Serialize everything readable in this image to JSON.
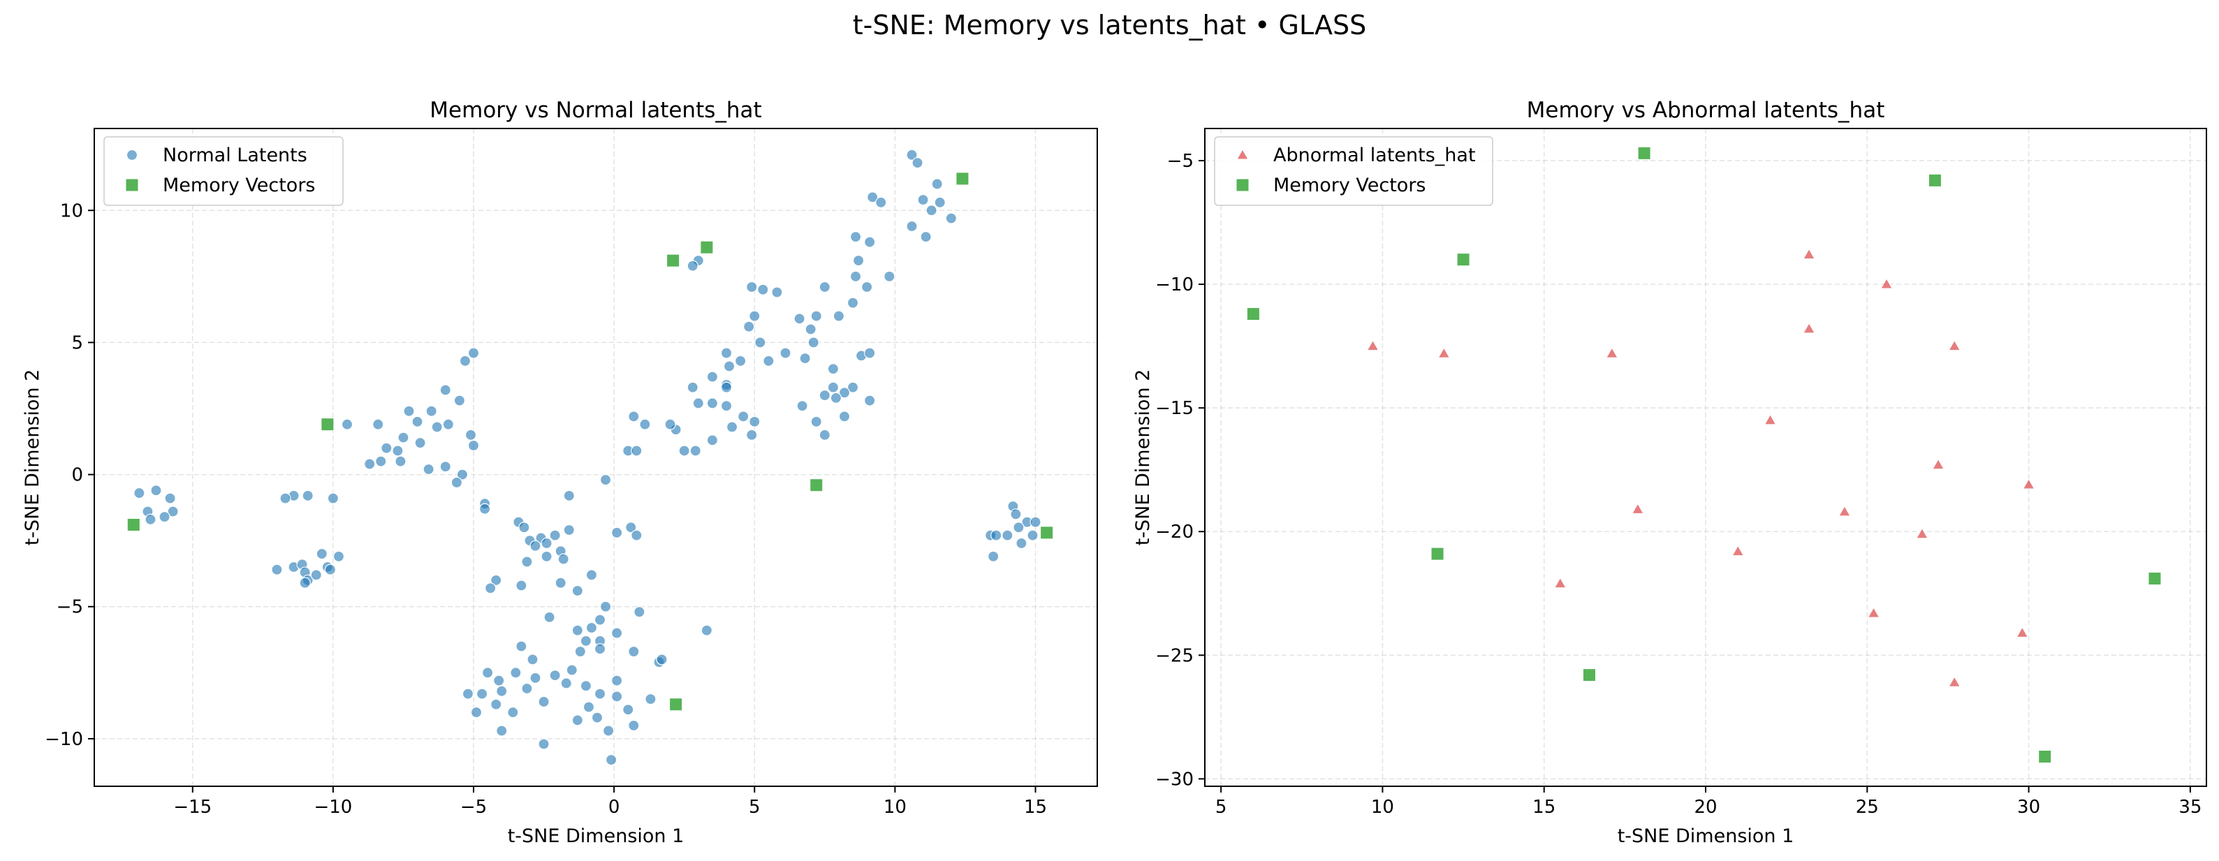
{
  "suptitle": "t-SNE: Memory vs latents_hat • GLASS",
  "colors": {
    "normal": "#1f77b4",
    "abnormal": "#d62728",
    "memory": "#2ca02c"
  },
  "chart_data": [
    {
      "type": "scatter",
      "title": "Memory vs Normal latents_hat",
      "xlabel": "t-SNE Dimension 1",
      "ylabel": "t-SNE Dimension 2",
      "xlim": [
        -18.5,
        17.2
      ],
      "ylim": [
        -11.8,
        13.1
      ],
      "xticks": [
        -15,
        -10,
        -5,
        0,
        5,
        10,
        15
      ],
      "yticks": [
        -10,
        -5,
        0,
        5,
        10
      ],
      "grid": true,
      "legend": "upper-left",
      "series": [
        {
          "name": "Normal Latents",
          "marker": "circle",
          "points": [
            [
              10.6,
              12.1
            ],
            [
              10.8,
              11.8
            ],
            [
              11.5,
              11.0
            ],
            [
              11.0,
              10.4
            ],
            [
              10.6,
              9.4
            ],
            [
              11.3,
              10.0
            ],
            [
              11.6,
              10.3
            ],
            [
              11.1,
              9.0
            ],
            [
              12.0,
              9.7
            ],
            [
              9.2,
              10.5
            ],
            [
              9.5,
              10.3
            ],
            [
              8.6,
              9.0
            ],
            [
              8.7,
              8.1
            ],
            [
              9.1,
              8.8
            ],
            [
              9.8,
              7.5
            ],
            [
              8.6,
              7.5
            ],
            [
              8.5,
              6.5
            ],
            [
              8.0,
              6.0
            ],
            [
              9.0,
              7.1
            ],
            [
              8.8,
              4.5
            ],
            [
              9.1,
              4.6
            ],
            [
              7.5,
              7.1
            ],
            [
              7.2,
              6.0
            ],
            [
              6.6,
              5.9
            ],
            [
              7.1,
              5.0
            ],
            [
              7.0,
              5.5
            ],
            [
              6.8,
              4.4
            ],
            [
              7.8,
              4.0
            ],
            [
              7.5,
              3.0
            ],
            [
              8.2,
              2.2
            ],
            [
              8.5,
              3.3
            ],
            [
              9.1,
              2.8
            ],
            [
              8.2,
              3.1
            ],
            [
              7.8,
              3.3
            ],
            [
              7.9,
              2.9
            ],
            [
              7.2,
              2.0
            ],
            [
              7.5,
              1.5
            ],
            [
              5.3,
              7.0
            ],
            [
              5.8,
              6.9
            ],
            [
              4.9,
              7.1
            ],
            [
              5.0,
              6.0
            ],
            [
              4.8,
              5.6
            ],
            [
              5.2,
              5.0
            ],
            [
              4.0,
              4.6
            ],
            [
              4.5,
              4.3
            ],
            [
              4.1,
              4.1
            ],
            [
              3.5,
              3.7
            ],
            [
              5.5,
              4.3
            ],
            [
              6.1,
              4.6
            ],
            [
              4.0,
              3.4
            ],
            [
              4.0,
              3.3
            ],
            [
              3.5,
              2.7
            ],
            [
              3.0,
              2.7
            ],
            [
              2.8,
              3.3
            ],
            [
              4.0,
              2.6
            ],
            [
              4.6,
              2.2
            ],
            [
              5.0,
              2.0
            ],
            [
              4.9,
              1.5
            ],
            [
              4.2,
              1.8
            ],
            [
              3.5,
              1.3
            ],
            [
              2.2,
              1.7
            ],
            [
              2.0,
              1.9
            ],
            [
              1.1,
              1.9
            ],
            [
              0.7,
              2.2
            ],
            [
              0.5,
              0.9
            ],
            [
              0.8,
              0.9
            ],
            [
              2.9,
              0.9
            ],
            [
              2.5,
              0.9
            ],
            [
              3.0,
              8.1
            ],
            [
              2.8,
              7.9
            ],
            [
              6.7,
              2.6
            ],
            [
              -5.0,
              4.6
            ],
            [
              -5.3,
              4.3
            ],
            [
              -6.0,
              3.2
            ],
            [
              -5.5,
              2.8
            ],
            [
              -6.5,
              2.4
            ],
            [
              -7.3,
              2.4
            ],
            [
              -7.0,
              2.0
            ],
            [
              -6.3,
              1.8
            ],
            [
              -5.9,
              1.9
            ],
            [
              -5.1,
              1.5
            ],
            [
              -7.5,
              1.4
            ],
            [
              -8.4,
              1.9
            ],
            [
              -9.5,
              1.9
            ],
            [
              -8.1,
              1.0
            ],
            [
              -7.7,
              0.9
            ],
            [
              -8.3,
              0.5
            ],
            [
              -8.7,
              0.4
            ],
            [
              -7.6,
              0.5
            ],
            [
              -6.9,
              1.2
            ],
            [
              -6.6,
              0.2
            ],
            [
              -6.0,
              0.3
            ],
            [
              -5.0,
              1.1
            ],
            [
              -5.4,
              0.0
            ],
            [
              -5.6,
              -0.3
            ],
            [
              -16.9,
              -0.7
            ],
            [
              -16.3,
              -0.6
            ],
            [
              -15.8,
              -0.9
            ],
            [
              -16.6,
              -1.4
            ],
            [
              -15.7,
              -1.4
            ],
            [
              -16.0,
              -1.6
            ],
            [
              -16.5,
              -1.7
            ],
            [
              -11.4,
              -0.8
            ],
            [
              -11.7,
              -0.9
            ],
            [
              -10.9,
              -0.8
            ],
            [
              -10.0,
              -0.9
            ],
            [
              -12.0,
              -3.6
            ],
            [
              -11.4,
              -3.5
            ],
            [
              -11.1,
              -3.4
            ],
            [
              -11.0,
              -3.7
            ],
            [
              -10.9,
              -4.0
            ],
            [
              -10.6,
              -3.8
            ],
            [
              -10.2,
              -3.5
            ],
            [
              -10.4,
              -3.0
            ],
            [
              -9.8,
              -3.1
            ],
            [
              -11.0,
              -4.1
            ],
            [
              -10.1,
              -3.6
            ],
            [
              -4.6,
              -1.1
            ],
            [
              -4.6,
              -1.3
            ],
            [
              -3.4,
              -1.8
            ],
            [
              -3.2,
              -2.0
            ],
            [
              -3.0,
              -2.5
            ],
            [
              -2.6,
              -2.4
            ],
            [
              -2.4,
              -2.6
            ],
            [
              -2.1,
              -2.3
            ],
            [
              -1.6,
              -2.1
            ],
            [
              -1.6,
              -0.8
            ],
            [
              -0.3,
              -0.2
            ],
            [
              0.1,
              -2.2
            ],
            [
              0.6,
              -2.0
            ],
            [
              0.8,
              -2.3
            ],
            [
              -1.9,
              -2.9
            ],
            [
              -2.8,
              -2.7
            ],
            [
              -2.4,
              -3.1
            ],
            [
              -1.8,
              -3.2
            ],
            [
              -3.1,
              -3.3
            ],
            [
              -3.3,
              -4.2
            ],
            [
              -4.2,
              -4.0
            ],
            [
              -4.4,
              -4.3
            ],
            [
              -2.3,
              -5.4
            ],
            [
              -1.9,
              -4.1
            ],
            [
              -1.3,
              -4.4
            ],
            [
              -0.8,
              -3.8
            ],
            [
              -0.3,
              -5.0
            ],
            [
              0.9,
              -5.2
            ],
            [
              -1.3,
              -5.9
            ],
            [
              -1.0,
              -6.3
            ],
            [
              -0.8,
              -5.8
            ],
            [
              -0.5,
              -5.5
            ],
            [
              -0.5,
              -6.3
            ],
            [
              0.1,
              -6.0
            ],
            [
              3.3,
              -5.9
            ],
            [
              1.6,
              -7.1
            ],
            [
              1.7,
              -7.0
            ],
            [
              0.7,
              -6.7
            ],
            [
              0.1,
              -7.8
            ],
            [
              -0.5,
              -6.6
            ],
            [
              -1.2,
              -6.7
            ],
            [
              -1.5,
              -7.4
            ],
            [
              -2.1,
              -7.6
            ],
            [
              -2.9,
              -7.0
            ],
            [
              -3.3,
              -6.5
            ],
            [
              -3.5,
              -7.5
            ],
            [
              -4.1,
              -7.8
            ],
            [
              -4.5,
              -7.5
            ],
            [
              -5.2,
              -8.3
            ],
            [
              -4.7,
              -8.3
            ],
            [
              -4.2,
              -8.7
            ],
            [
              -4.0,
              -8.2
            ],
            [
              -3.6,
              -9.0
            ],
            [
              -3.1,
              -8.1
            ],
            [
              -2.8,
              -7.7
            ],
            [
              -2.5,
              -8.6
            ],
            [
              -1.7,
              -7.9
            ],
            [
              -1.0,
              -8.0
            ],
            [
              -0.9,
              -8.8
            ],
            [
              -0.5,
              -8.3
            ],
            [
              0.1,
              -8.4
            ],
            [
              0.5,
              -8.9
            ],
            [
              0.7,
              -9.5
            ],
            [
              -0.2,
              -9.7
            ],
            [
              -0.6,
              -9.2
            ],
            [
              -1.3,
              -9.3
            ],
            [
              -2.5,
              -10.2
            ],
            [
              -4.0,
              -9.7
            ],
            [
              -4.9,
              -9.0
            ],
            [
              -0.1,
              -10.8
            ],
            [
              1.3,
              -8.5
            ],
            [
              14.2,
              -1.2
            ],
            [
              14.3,
              -1.5
            ],
            [
              14.7,
              -1.8
            ],
            [
              15.0,
              -1.8
            ],
            [
              14.9,
              -2.3
            ],
            [
              14.5,
              -2.6
            ],
            [
              14.0,
              -2.3
            ],
            [
              13.4,
              -2.3
            ],
            [
              13.6,
              -2.3
            ],
            [
              13.5,
              -3.1
            ],
            [
              14.4,
              -2.0
            ]
          ]
        },
        {
          "name": "Memory Vectors",
          "marker": "square",
          "points": [
            [
              12.4,
              11.2
            ],
            [
              3.3,
              8.6
            ],
            [
              2.1,
              8.1
            ],
            [
              -10.2,
              1.9
            ],
            [
              7.2,
              -0.4
            ],
            [
              -17.1,
              -1.9
            ],
            [
              15.4,
              -2.2
            ],
            [
              2.2,
              -8.7
            ]
          ]
        }
      ]
    },
    {
      "type": "scatter",
      "title": "Memory vs Abnormal latents_hat",
      "xlabel": "t-SNE Dimension 1",
      "ylabel": "t-SNE Dimension 2",
      "xlim": [
        4.5,
        35.5
      ],
      "ylim": [
        -30.3,
        -3.7
      ],
      "xticks": [
        5,
        10,
        15,
        20,
        25,
        30,
        35
      ],
      "yticks": [
        -5,
        -10,
        -15,
        -20,
        -25,
        -30
      ],
      "grid": true,
      "legend": "upper-left",
      "series": [
        {
          "name": "Abnormal latents_hat",
          "marker": "triangle",
          "points": [
            [
              23.2,
              -8.8
            ],
            [
              25.6,
              -10.0
            ],
            [
              9.7,
              -12.5
            ],
            [
              11.9,
              -12.8
            ],
            [
              17.1,
              -12.8
            ],
            [
              23.2,
              -11.8
            ],
            [
              27.7,
              -12.5
            ],
            [
              22.0,
              -15.5
            ],
            [
              27.2,
              -17.3
            ],
            [
              30.0,
              -18.1
            ],
            [
              17.9,
              -19.1
            ],
            [
              24.3,
              -19.2
            ],
            [
              21.0,
              -20.8
            ],
            [
              26.7,
              -20.1
            ],
            [
              15.5,
              -22.1
            ],
            [
              25.2,
              -23.3
            ],
            [
              29.8,
              -24.1
            ],
            [
              27.7,
              -26.1
            ]
          ]
        },
        {
          "name": "Memory Vectors",
          "marker": "square",
          "points": [
            [
              18.1,
              -4.7
            ],
            [
              27.1,
              -5.8
            ],
            [
              12.5,
              -9.0
            ],
            [
              6.0,
              -11.2
            ],
            [
              11.7,
              -20.9
            ],
            [
              33.9,
              -21.9
            ],
            [
              16.4,
              -25.8
            ],
            [
              30.5,
              -29.1
            ]
          ]
        }
      ]
    }
  ]
}
